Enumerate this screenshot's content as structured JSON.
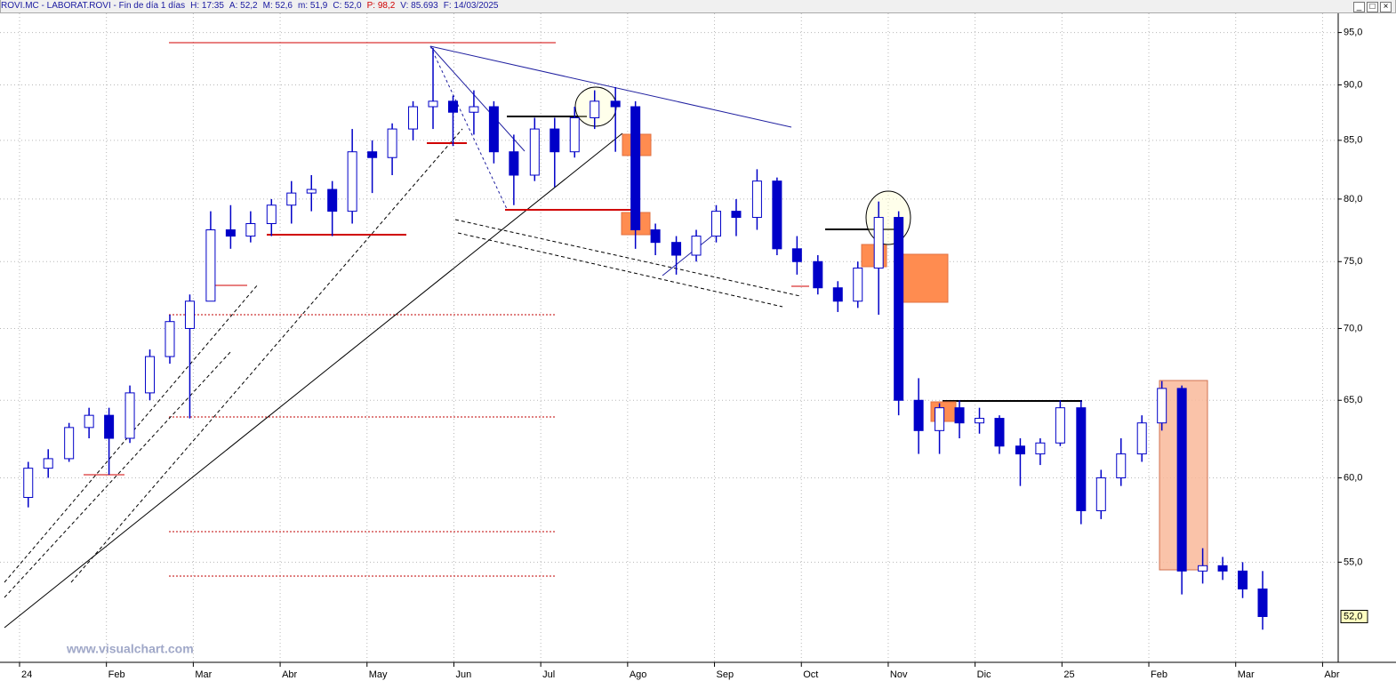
{
  "header": {
    "title": "ROVI.MC - LABORAT.ROVI - Fin de día 1 días",
    "fields": [
      "H: 17:35",
      "A: 52,2",
      "M: 52,6",
      "m: 51,9",
      "C: 52,0",
      "P: 98,2",
      "V: 85.693",
      "F: 14/03/2025"
    ]
  },
  "watermark": "www.visualchart.com",
  "chart_data": {
    "type": "candlestick",
    "log_scale": true,
    "grid": true,
    "up_color": "#ffffff",
    "down_color": "#0000c8",
    "line_color": "#0000c8",
    "last_value_label": "52,0",
    "xlim": [
      -0.225,
      15.18
    ],
    "xticks": [
      {
        "value": 0,
        "label": "24"
      },
      {
        "value": 1,
        "label": "Feb"
      },
      {
        "value": 2,
        "label": "Mar"
      },
      {
        "value": 3,
        "label": "Abr"
      },
      {
        "value": 4,
        "label": "May"
      },
      {
        "value": 5,
        "label": "Jun"
      },
      {
        "value": 6,
        "label": "Jul"
      },
      {
        "value": 7,
        "label": "Ago"
      },
      {
        "value": 8,
        "label": "Sep"
      },
      {
        "value": 9,
        "label": "Oct"
      },
      {
        "value": 10,
        "label": "Nov"
      },
      {
        "value": 11,
        "label": "Dic"
      },
      {
        "value": 12,
        "label": "25"
      },
      {
        "value": 13,
        "label": "Feb"
      },
      {
        "value": 14,
        "label": "Mar"
      },
      {
        "value": 15,
        "label": "Abr"
      }
    ],
    "ylim": [
      49.6,
      96.9
    ],
    "yticks": [
      {
        "value": 55,
        "label": "55,0"
      },
      {
        "value": 60,
        "label": "60,0"
      },
      {
        "value": 65,
        "label": "65,0"
      },
      {
        "value": 70,
        "label": "70,0"
      },
      {
        "value": 75,
        "label": "75,0"
      },
      {
        "value": 80,
        "label": "80,0"
      },
      {
        "value": 85,
        "label": "85,0"
      },
      {
        "value": 90,
        "label": "90,0"
      },
      {
        "value": 95,
        "label": "95,0"
      }
    ],
    "x": [
      0.1,
      0.33,
      0.57,
      0.8,
      1.03,
      1.27,
      1.5,
      1.73,
      1.96,
      2.2,
      2.43,
      2.66,
      2.9,
      3.13,
      3.36,
      3.6,
      3.83,
      4.06,
      4.29,
      4.53,
      4.76,
      4.99,
      5.23,
      5.46,
      5.69,
      5.93,
      6.16,
      6.39,
      6.62,
      6.86,
      7.09,
      7.32,
      7.56,
      7.79,
      8.02,
      8.25,
      8.49,
      8.72,
      8.95,
      9.19,
      9.42,
      9.65,
      9.89,
      10.12,
      10.35,
      10.59,
      10.82,
      11.05,
      11.28,
      11.52,
      11.75,
      11.98,
      12.22,
      12.45,
      12.68,
      12.92,
      13.15,
      13.38,
      13.62,
      13.85,
      14.08,
      14.31
    ],
    "open": [
      58.8,
      60.6,
      61.2,
      63.2,
      64,
      62.5,
      65.5,
      68,
      70,
      72,
      77.5,
      77,
      78,
      79.5,
      80.5,
      80.8,
      79,
      84,
      83.5,
      86,
      88,
      88.5,
      87.5,
      88,
      84,
      82,
      86,
      84,
      87,
      88.5,
      88,
      77.5,
      76.5,
      75.5,
      77,
      79,
      78.5,
      81.5,
      76,
      75,
      73,
      72,
      74.5,
      78.5,
      65,
      63,
      64.5,
      63.5,
      63.8,
      62,
      61.5,
      62.2,
      64.5,
      58,
      60,
      61.5,
      63.5,
      65.8,
      54.5,
      54.8,
      54.5,
      53.5
    ],
    "high": [
      61,
      61.8,
      63.5,
      64.5,
      64.5,
      66,
      68.5,
      71,
      72.5,
      79,
      79.5,
      79,
      80,
      81.5,
      82,
      81.5,
      86,
      85,
      86.5,
      88.5,
      93.5,
      89,
      89.5,
      88.5,
      85.5,
      87,
      87,
      88,
      89.5,
      89.8,
      88.5,
      78,
      77,
      77.5,
      79.5,
      80,
      82.5,
      81.8,
      77,
      75.5,
      73.5,
      75,
      79.8,
      79,
      66.5,
      64.8,
      65,
      64.5,
      64,
      62.5,
      62.5,
      65,
      65,
      60.5,
      62.5,
      64,
      66.3,
      66,
      55.8,
      55.3,
      55,
      54.5
    ],
    "low": [
      58.2,
      60,
      61,
      62.5,
      60.2,
      62.2,
      65,
      67.5,
      63.8,
      72,
      76,
      76.5,
      77,
      78,
      79,
      77,
      78,
      80.5,
      82,
      85,
      86,
      84.5,
      85.5,
      83,
      79.5,
      81.5,
      81,
      83.5,
      86,
      84,
      76,
      75.5,
      74,
      75,
      76.5,
      77,
      77.5,
      75.5,
      74,
      72.5,
      71.2,
      71.5,
      71,
      64,
      61.5,
      61.5,
      62.5,
      62.8,
      61.5,
      59.5,
      60.8,
      62,
      57.2,
      57.5,
      59.5,
      61,
      63,
      53.2,
      53.8,
      54,
      53,
      51.3
    ],
    "close": [
      60.6,
      61.2,
      63.2,
      64,
      62.5,
      65.5,
      68,
      70.5,
      72,
      77.5,
      77,
      78,
      79.5,
      80.5,
      80.8,
      79,
      84,
      83.5,
      86,
      88,
      88.5,
      87.5,
      88,
      84,
      82,
      86,
      84,
      87,
      88.5,
      88,
      77.5,
      76.5,
      75.5,
      77,
      79,
      78.5,
      81.5,
      76,
      75,
      73,
      72,
      74.5,
      78.5,
      65,
      63,
      64.5,
      63.5,
      63.8,
      62,
      61.5,
      62.2,
      64.5,
      58,
      60,
      61.5,
      63.5,
      65.8,
      54.5,
      54.8,
      54.5,
      53.5,
      52
    ]
  }
}
